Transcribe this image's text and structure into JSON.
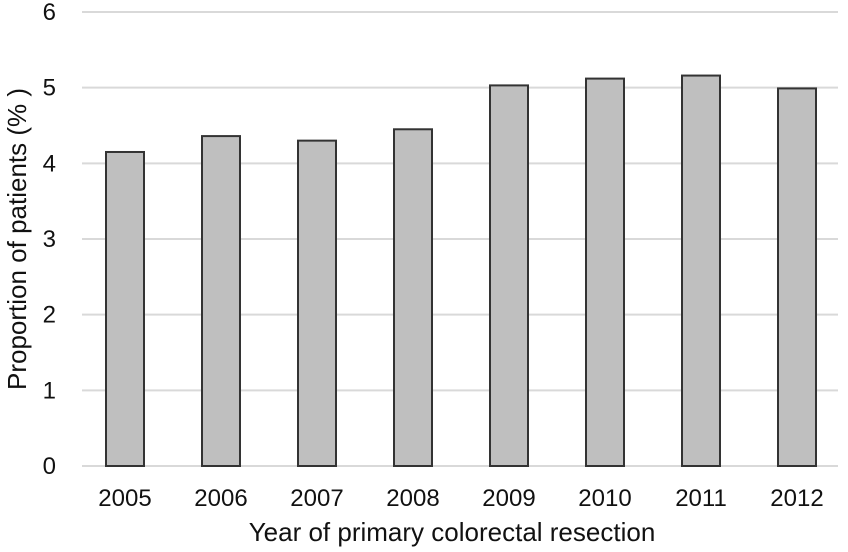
{
  "chart_data": {
    "type": "bar",
    "categories": [
      "2005",
      "2006",
      "2007",
      "2008",
      "2009",
      "2010",
      "2011",
      "2012"
    ],
    "values": [
      4.15,
      4.36,
      4.3,
      4.45,
      5.03,
      5.12,
      5.16,
      4.99
    ],
    "xlabel": "Year of primary colorectal resection",
    "ylabel": "Proportion of patients (% )",
    "ylim": [
      0,
      6
    ],
    "yticks": [
      "0",
      "1",
      "2",
      "3",
      "4",
      "5",
      "6"
    ],
    "grid": true,
    "colors": {
      "bar_fill": "#bfbfbf",
      "bar_stroke": "#333333",
      "grid": "#d9d9d9"
    }
  }
}
